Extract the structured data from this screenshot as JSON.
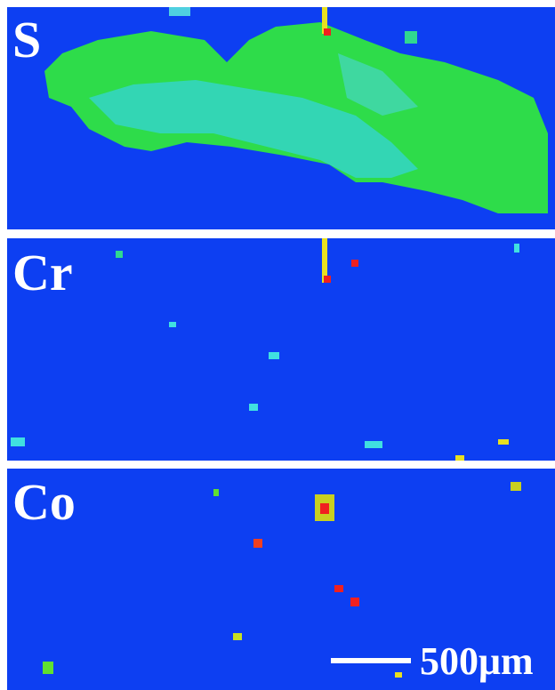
{
  "panels": [
    {
      "label": "S"
    },
    {
      "label": "Cr"
    },
    {
      "label": "Co"
    }
  ],
  "scale_bar": {
    "label": "500μm"
  }
}
